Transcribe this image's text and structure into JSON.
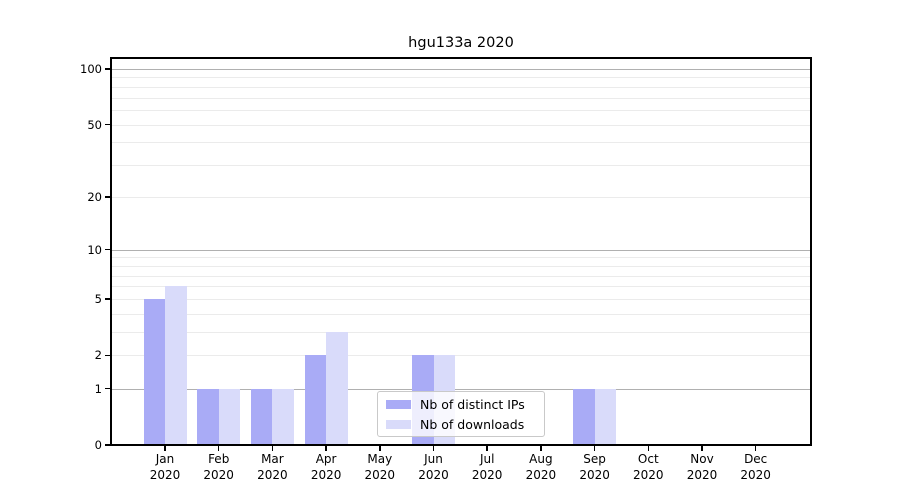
{
  "chart_data": {
    "type": "bar",
    "title": "hgu133a 2020",
    "categories": [
      "Jan\n2020",
      "Feb\n2020",
      "Mar\n2020",
      "Apr\n2020",
      "May\n2020",
      "Jun\n2020",
      "Jul\n2020",
      "Aug\n2020",
      "Sep\n2020",
      "Oct\n2020",
      "Nov\n2020",
      "Dec\n2020"
    ],
    "series": [
      {
        "name": "Nb of distinct IPs",
        "color": "#a9abf6",
        "values": [
          5,
          1,
          1,
          2,
          0,
          2,
          0,
          0,
          1,
          0,
          0,
          0
        ]
      },
      {
        "name": "Nb of downloads",
        "color": "#d9dbfa",
        "values": [
          6,
          1,
          1,
          3,
          0,
          2,
          0,
          0,
          1,
          0,
          0,
          0
        ]
      }
    ],
    "xlabel": "",
    "ylabel": "",
    "y_scale": "log1p",
    "ylim": [
      0,
      113
    ],
    "y_ticks": [
      0,
      1,
      2,
      5,
      10,
      20,
      50,
      100
    ],
    "y_major_gridlines": [
      1,
      10,
      100
    ],
    "y_minor_gridlines": [
      2,
      3,
      4,
      5,
      6,
      7,
      8,
      9,
      20,
      30,
      40,
      50,
      60,
      70,
      80,
      90
    ],
    "grid": "horizontal",
    "legend_position": "lower center",
    "colors": {
      "major_grid": "#b0b0b0",
      "minor_grid": "#ebebeb",
      "axis": "#000000",
      "background": "#ffffff"
    }
  }
}
